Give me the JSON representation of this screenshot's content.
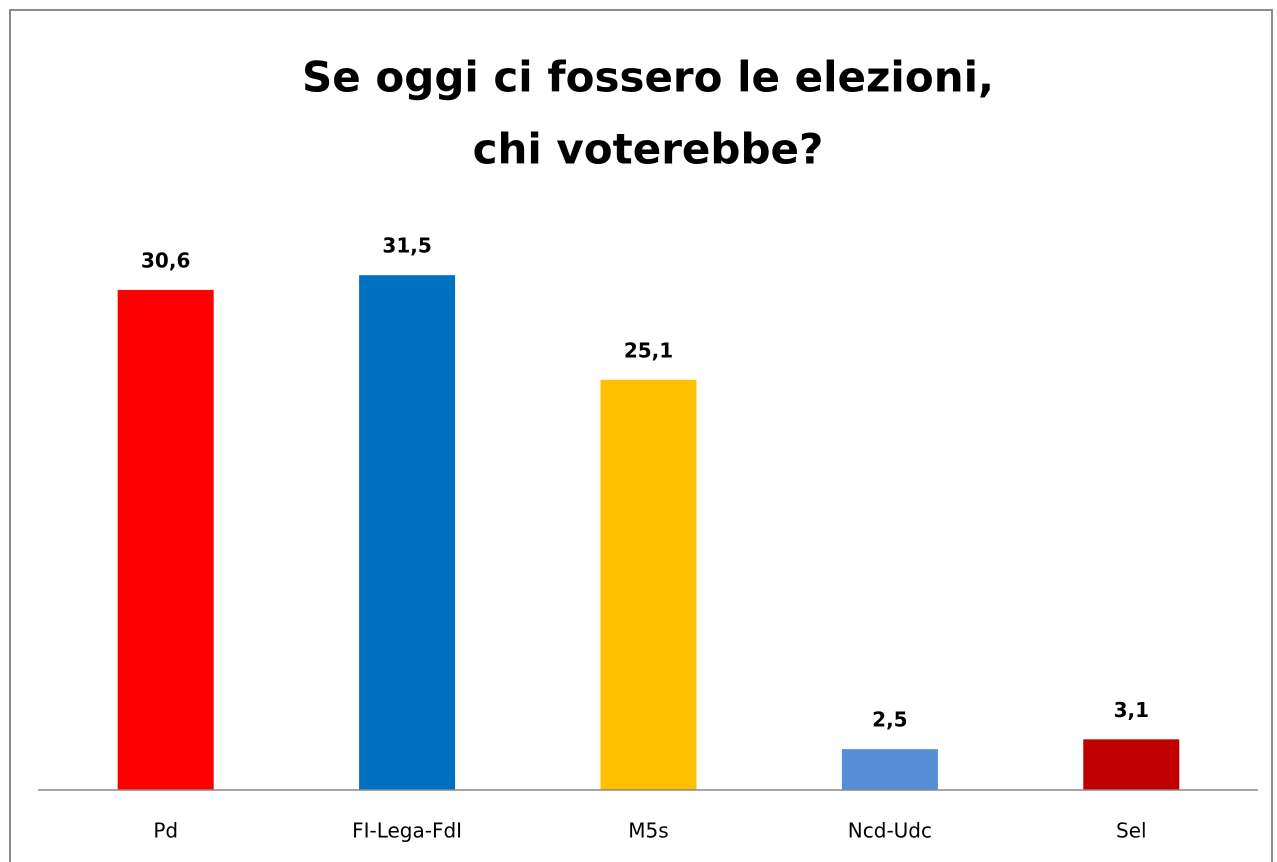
{
  "chart_data": {
    "type": "bar",
    "title": [
      "Se oggi ci fossero le elezioni,",
      "chi voterebbe?"
    ],
    "categories": [
      "Pd",
      "FI-Lega-FdI",
      "M5s",
      "Ncd-Udc",
      "Sel"
    ],
    "values": [
      30.6,
      31.5,
      25.1,
      2.5,
      3.1
    ],
    "value_labels": [
      "30,6",
      "31,5",
      "25,1",
      "2,5",
      "3,1"
    ],
    "colors": [
      "#ff0000",
      "#0070c0",
      "#ffc000",
      "#558ed5",
      "#c00000"
    ],
    "ylim": [
      0,
      35
    ]
  }
}
